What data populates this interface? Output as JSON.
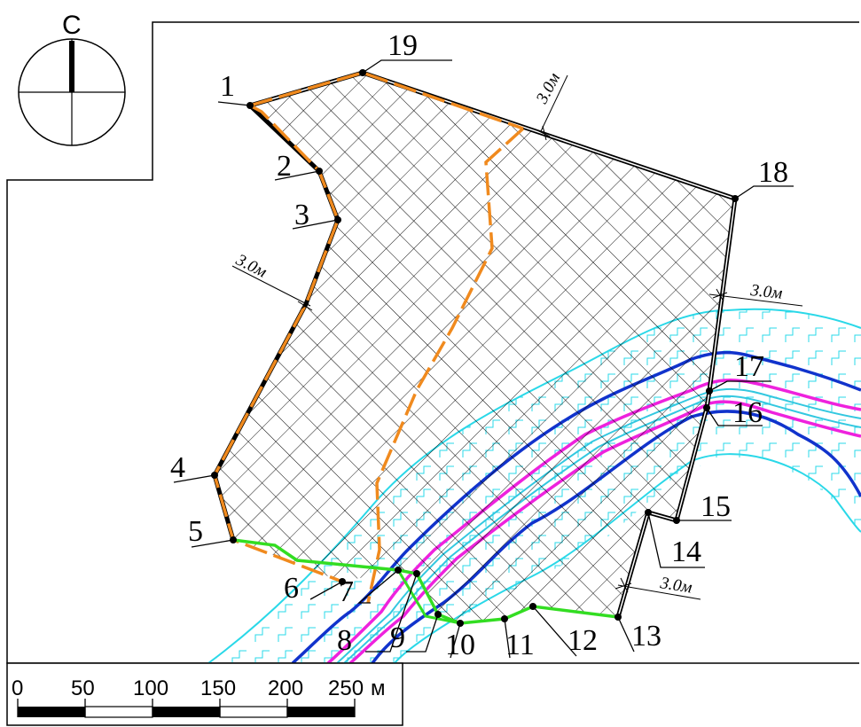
{
  "compass": {
    "north_letter": "С"
  },
  "point_labels": [
    "1",
    "2",
    "3",
    "4",
    "5",
    "6",
    "7",
    "8",
    "9",
    "10",
    "11",
    "12",
    "13",
    "14",
    "15",
    "16",
    "17",
    "18",
    "19"
  ],
  "dimension_labels": [
    "3.0м",
    "3.0м",
    "3.0м",
    "3.0м"
  ],
  "scale_bar": {
    "ticks": [
      "0",
      "50",
      "100",
      "150",
      "200",
      "250"
    ],
    "unit": "м"
  },
  "colors": {
    "boundary": "#000000",
    "setback_line": "#f08a1e",
    "green_line": "#33dd22",
    "river_outer": "#2ad8e8",
    "river_blue": "#1133cc",
    "river_magenta": "#ee22dd",
    "river_center": "#33c8e0",
    "hatch": "#000000"
  }
}
